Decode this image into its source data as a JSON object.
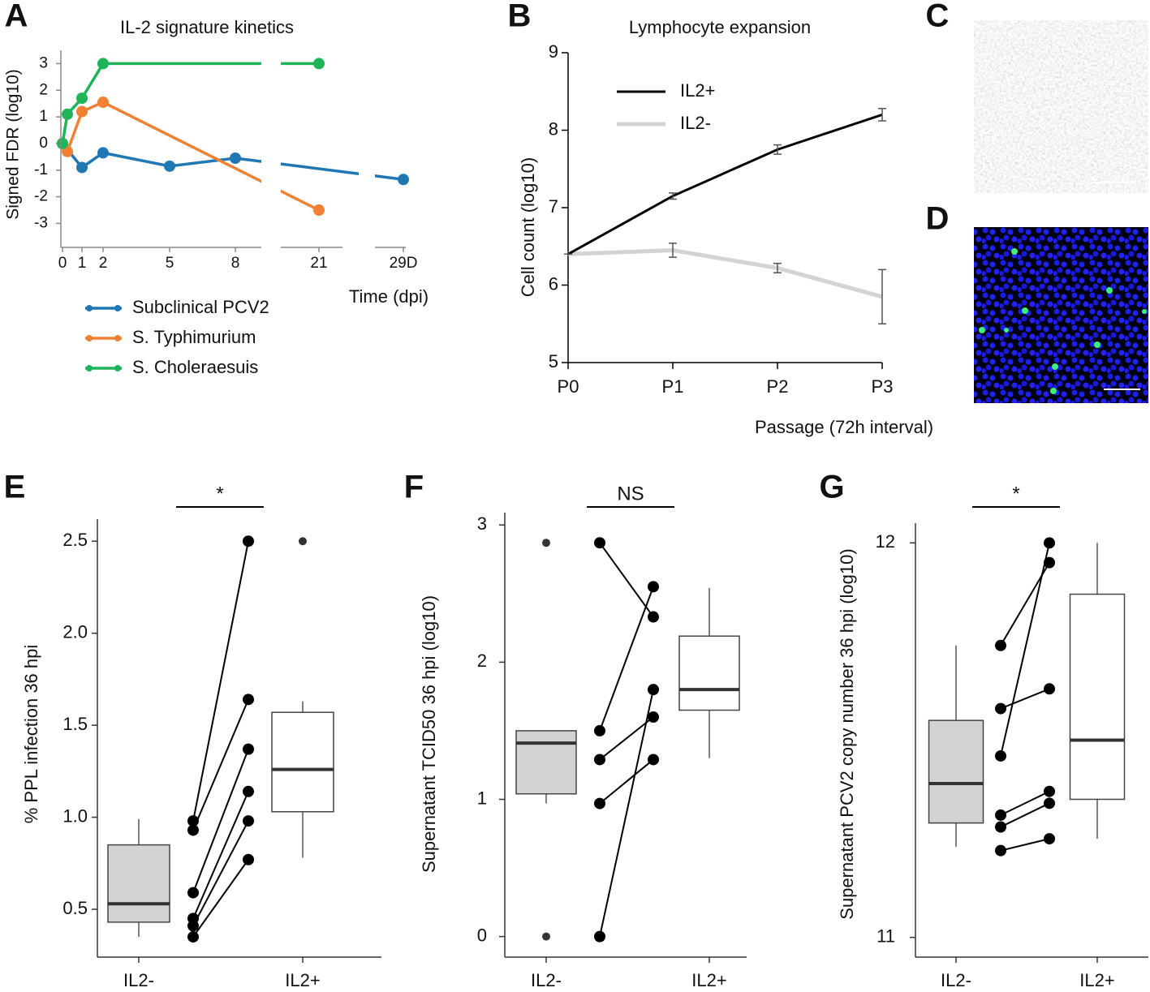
{
  "chart_data": [
    {
      "panel": "A",
      "type": "line",
      "title": "IL-2 signature kinetics",
      "x_label": "Time (dpi)",
      "y_label": "Signed FDR (log10)",
      "xlim": [
        0,
        29
      ],
      "xticks": [
        0,
        1,
        2,
        5,
        8,
        21,
        {
          "value": 29,
          "label": "29D"
        }
      ],
      "ylim": [
        -3.9,
        3.5
      ],
      "yticks": [
        3,
        2,
        1,
        0,
        -1,
        -2,
        -3
      ],
      "series": [
        {
          "name": "Subclinical PCV2",
          "color": "#1f77b4",
          "x": [
            0,
            1,
            2,
            5,
            8,
            29
          ],
          "values": [
            0,
            -0.9,
            -0.35,
            -0.85,
            -0.55,
            -1.35
          ]
        },
        {
          "name": "S. Typhimurium",
          "color": "#f28032",
          "x": [
            0,
            0.25,
            1,
            2,
            21
          ],
          "values": [
            0,
            -0.3,
            1.2,
            1.55,
            -2.5
          ]
        },
        {
          "name": "S. Choleraesuis",
          "color": "#1fb35a",
          "x": [
            0,
            0.25,
            1,
            2,
            21
          ],
          "values": [
            0,
            1.1,
            1.7,
            3,
            3
          ]
        }
      ]
    },
    {
      "panel": "B",
      "type": "line",
      "title": "Lymphocyte expansion",
      "x_label": "Passage (72h interval)",
      "y_label": "Cell count (log10)",
      "categories": [
        "P0",
        "P1",
        "P2",
        "P3"
      ],
      "ylim": [
        5,
        9
      ],
      "yticks": [
        5,
        6,
        7,
        8,
        9
      ],
      "series": [
        {
          "name": "IL2+",
          "color": "#000000",
          "values": [
            6.4,
            7.15,
            7.75,
            8.2
          ],
          "errors": [
            0,
            0.04,
            0.06,
            0.08
          ]
        },
        {
          "name": "IL2-",
          "color": "#d3d3d3",
          "values": [
            6.4,
            6.45,
            6.22,
            5.85
          ],
          "errors": [
            0,
            0.09,
            0.06,
            0.35
          ]
        }
      ]
    },
    {
      "panel": "C",
      "type": "image"
    },
    {
      "panel": "D",
      "type": "image"
    },
    {
      "panel": "E",
      "type": "box",
      "y_label": "% PPL infection 36 hpi",
      "categories": [
        "IL2-",
        "IL2+"
      ],
      "significance": "*",
      "ylim": [
        0.24,
        2.62
      ],
      "yticks": [
        0.5,
        {
          "value": 1,
          "label": "1.0"
        },
        1.5,
        {
          "value": 2,
          "label": "2.0"
        },
        2.5
      ],
      "boxes": [
        {
          "min": 0.35,
          "q1": 0.43,
          "median": 0.53,
          "q3": 0.85,
          "max": 0.99,
          "outliers": [],
          "color": "#d3d3d3"
        },
        {
          "min": 0.78,
          "q1": 1.03,
          "median": 1.26,
          "q3": 1.57,
          "max": 1.63,
          "outliers": [
            2.5
          ],
          "color": "#ffffff"
        }
      ],
      "paired": {
        "before": [
          0.98,
          0.93,
          0.59,
          0.45,
          0.41,
          0.35
        ],
        "after": [
          2.5,
          1.64,
          1.37,
          1.14,
          0.98,
          0.77
        ]
      }
    },
    {
      "panel": "F",
      "type": "box",
      "y_label": "Supernatant TCID50 36 hpi (log10)",
      "categories": [
        "IL2-",
        "IL2+"
      ],
      "significance": "NS",
      "ylim": [
        -0.15,
        3.09
      ],
      "yticks": [
        0,
        1,
        2,
        3
      ],
      "boxes": [
        {
          "min": 0.97,
          "q1": 1.04,
          "median": 1.41,
          "q3": 1.5,
          "max": 1.5,
          "outliers": [
            2.87,
            0
          ],
          "color": "#d3d3d3"
        },
        {
          "min": 1.3,
          "q1": 1.65,
          "median": 1.8,
          "q3": 2.19,
          "max": 2.54,
          "outliers": [],
          "color": "#ffffff"
        }
      ],
      "paired": {
        "before": [
          2.87,
          1.5,
          1.29,
          0.97,
          0
        ],
        "after": [
          2.33,
          2.55,
          1.6,
          1.29,
          1.8
        ]
      }
    },
    {
      "panel": "G",
      "type": "box",
      "y_label": "Supernatant PCV2 copy number 36 hpi (log10)",
      "categories": [
        "IL2-",
        "IL2+"
      ],
      "significance": "*",
      "ylim": [
        10.95,
        12.05
      ],
      "yticks": [
        11,
        12
      ],
      "boxes": [
        {
          "min": 11.23,
          "q1": 11.29,
          "median": 11.39,
          "q3": 11.55,
          "max": 11.74,
          "outliers": [],
          "color": "#d3d3d3"
        },
        {
          "min": 11.25,
          "q1": 11.35,
          "median": 11.5,
          "q3": 11.87,
          "max": 12.0,
          "outliers": [],
          "color": "#ffffff"
        }
      ],
      "paired": {
        "before": [
          11.74,
          11.58,
          11.46,
          11.31,
          11.28,
          11.22
        ],
        "after": [
          11.95,
          11.63,
          12.0,
          11.37,
          11.34,
          11.25
        ]
      }
    }
  ]
}
